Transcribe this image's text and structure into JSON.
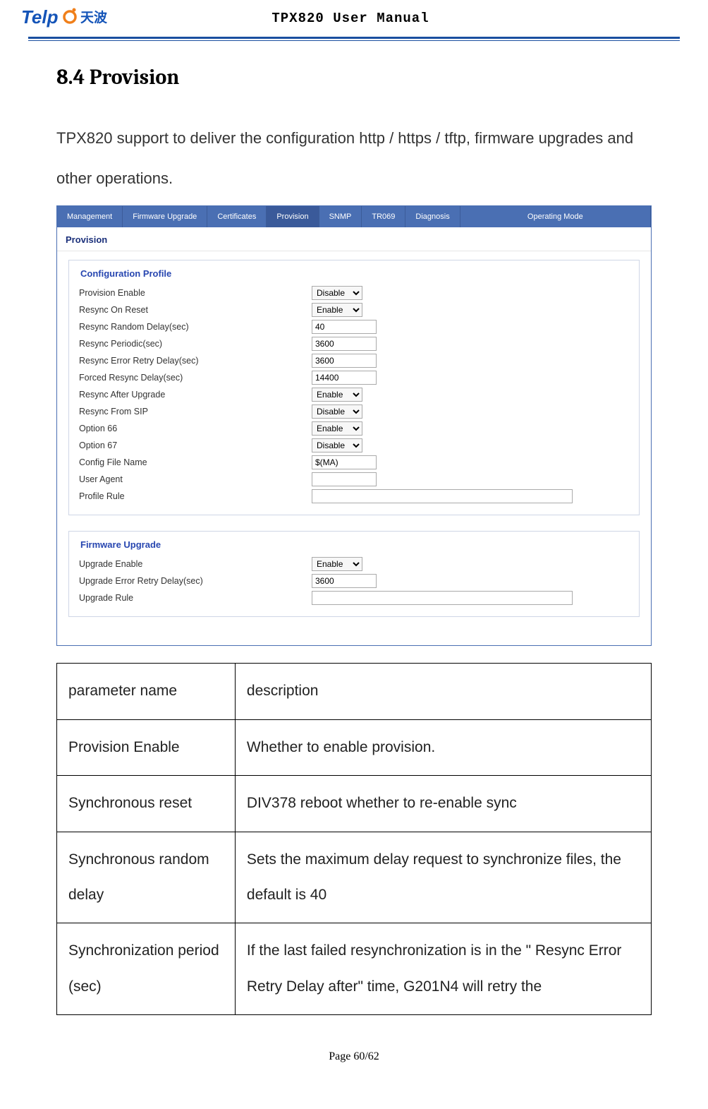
{
  "header": {
    "doc_title": "TPX820 User Manual",
    "logo_primary": "Telp",
    "logo_cn": "天波",
    "logo_colors": {
      "text": "#1454b8",
      "accent": "#f07f1a"
    }
  },
  "section": {
    "heading": "8.4 Provision",
    "paragraph": "TPX820 support to deliver the configuration http / https / tftp, firmware upgrades and other operations."
  },
  "screenshot": {
    "tabs": [
      "Management",
      "Firmware Upgrade",
      "Certificates",
      "Provision",
      "SNMP",
      "TR069",
      "Diagnosis",
      "Operating Mode"
    ],
    "active_tab_index": 3,
    "section_label": "Provision",
    "fieldsets": [
      {
        "legend": "Configuration Profile",
        "rows": [
          {
            "label": "Provision Enable",
            "type": "select",
            "value": "Disable"
          },
          {
            "label": "Resync On Reset",
            "type": "select",
            "value": "Enable"
          },
          {
            "label": "Resync Random Delay(sec)",
            "type": "text",
            "value": "40",
            "width": "w90"
          },
          {
            "label": "Resync Periodic(sec)",
            "type": "text",
            "value": "3600",
            "width": "w90"
          },
          {
            "label": "Resync Error Retry Delay(sec)",
            "type": "text",
            "value": "3600",
            "width": "w90"
          },
          {
            "label": "Forced Resync Delay(sec)",
            "type": "text",
            "value": "14400",
            "width": "w90"
          },
          {
            "label": "Resync After Upgrade",
            "type": "select",
            "value": "Enable"
          },
          {
            "label": "Resync From SIP",
            "type": "select",
            "value": "Disable"
          },
          {
            "label": "Option 66",
            "type": "select",
            "value": "Enable"
          },
          {
            "label": "Option 67",
            "type": "select",
            "value": "Disable"
          },
          {
            "label": "Config File Name",
            "type": "text",
            "value": "$(MA)",
            "width": "w90"
          },
          {
            "label": "User Agent",
            "type": "text",
            "value": "",
            "width": "w90"
          },
          {
            "label": "Profile Rule",
            "type": "text",
            "value": "",
            "width": "w370"
          }
        ]
      },
      {
        "legend": "Firmware Upgrade",
        "no_top_border": true,
        "rows": [
          {
            "label": "Upgrade Enable",
            "type": "select",
            "value": "Enable"
          },
          {
            "label": "Upgrade Error Retry Delay(sec)",
            "type": "text",
            "value": "3600",
            "width": "w90"
          },
          {
            "label": "Upgrade Rule",
            "type": "text",
            "value": "",
            "width": "w370"
          }
        ]
      }
    ]
  },
  "param_table": {
    "header": [
      "parameter name",
      "description"
    ],
    "rows": [
      [
        "Provision Enable",
        "Whether to enable provision."
      ],
      [
        "Synchronous reset",
        "DIV378 reboot whether to re-enable sync"
      ],
      [
        "Synchronous random delay",
        "Sets the maximum delay request to synchronize files, the default is 40"
      ],
      [
        "Synchronization period (sec)",
        "If the last failed resynchronization is in the \" Resync Error Retry Delay after\" time, G201N4 will retry the"
      ]
    ]
  },
  "footer": {
    "page_label": "Page 60/62"
  }
}
